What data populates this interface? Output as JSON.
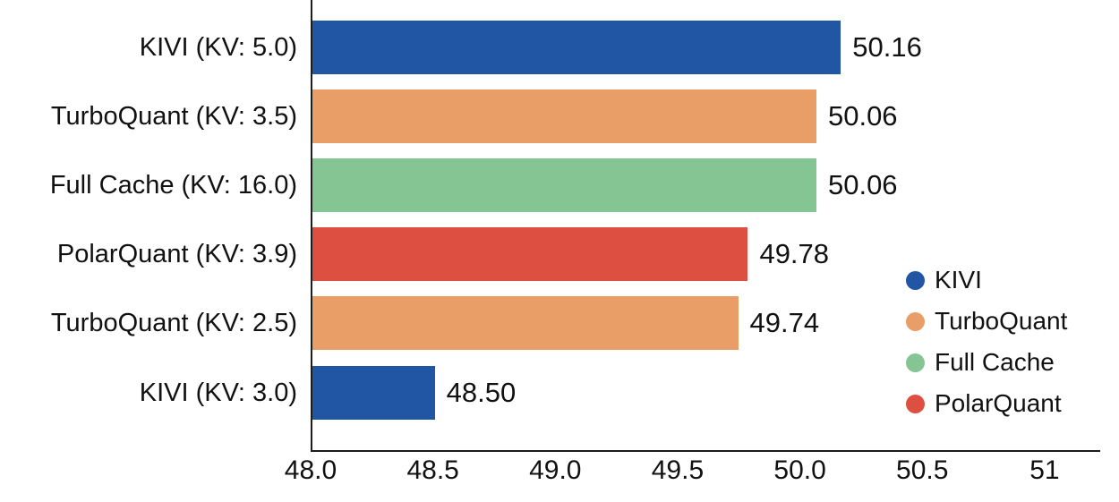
{
  "chart_data": {
    "type": "bar",
    "orientation": "horizontal",
    "categories": [
      "KIVI (KV: 5.0)",
      "TurboQuant (KV: 3.5)",
      "Full Cache (KV: 16.0)",
      "PolarQuant (KV: 3.9)",
      "TurboQuant (KV: 2.5)",
      "KIVI (KV: 3.0)"
    ],
    "values": [
      50.16,
      50.06,
      50.06,
      49.78,
      49.74,
      48.5
    ],
    "value_labels": [
      "50.16",
      "50.06",
      "50.06",
      "49.78",
      "49.74",
      "48.50"
    ],
    "bar_series": [
      "KIVI",
      "TurboQuant",
      "Full Cache",
      "PolarQuant",
      "TurboQuant",
      "KIVI"
    ],
    "bar_colors": [
      "#2056A3",
      "#E99E68",
      "#85C493",
      "#DC4F41",
      "#E99E68",
      "#2056A3"
    ],
    "xlim": [
      48.0,
      51.22
    ],
    "xticks": [
      48.0,
      48.5,
      49.0,
      49.5,
      50.0,
      50.5,
      51.0
    ],
    "xtick_labels": [
      "48.0",
      "48.5",
      "49.0",
      "49.5",
      "50.0",
      "50.5",
      "51"
    ],
    "grid": false,
    "legend": {
      "position": "right",
      "items": [
        {
          "label": "KIVI",
          "color": "#2056A3"
        },
        {
          "label": "TurboQuant",
          "color": "#E99E68"
        },
        {
          "label": "Full Cache",
          "color": "#85C493"
        },
        {
          "label": "PolarQuant",
          "color": "#DC4F41"
        }
      ]
    }
  },
  "colors": {
    "background": "#ffffff",
    "axis": "#1c1c1c",
    "text": "#111111"
  }
}
